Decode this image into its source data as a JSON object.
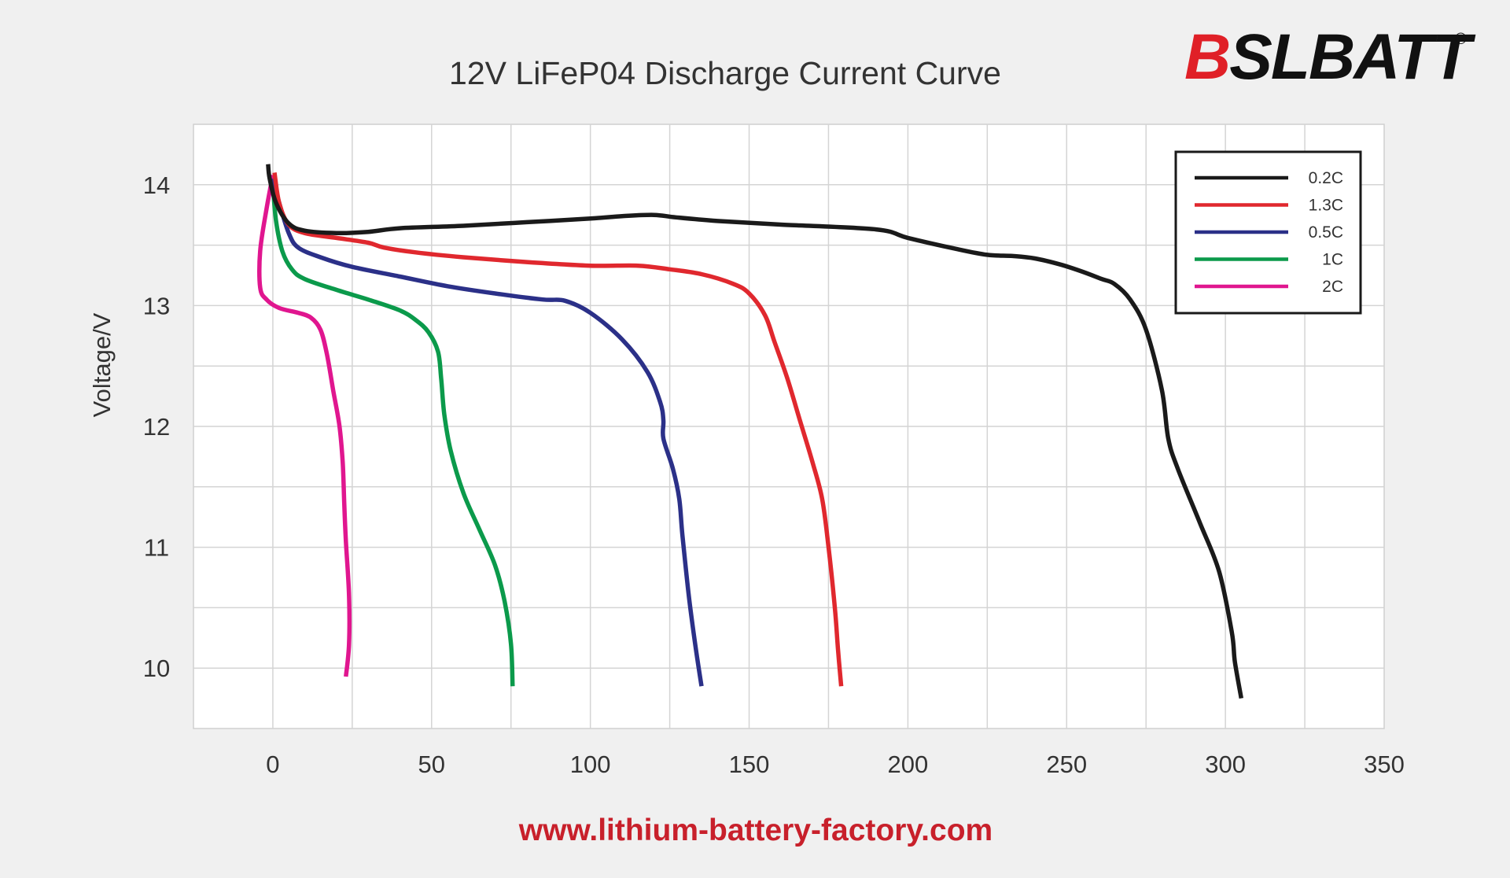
{
  "logo": {
    "text": "BSLBATT",
    "registered_mark": "®",
    "accent_color": "#e02027"
  },
  "footer": {
    "url": "www.lithium-battery-factory.com",
    "color": "#c8202b"
  },
  "chart_data": {
    "type": "line",
    "title": "12V LiFeP04 Discharge Current Curve",
    "xlabel": "",
    "ylabel": "Voltage/V",
    "xlim": [
      -25,
      350
    ],
    "ylim": [
      9.5,
      14.5
    ],
    "x_ticks": [
      0,
      50,
      100,
      150,
      200,
      250,
      300,
      350
    ],
    "y_ticks": [
      10,
      11,
      12,
      13,
      14
    ],
    "grid": true,
    "legend_position": "top-right",
    "series": [
      {
        "name": "0.2C",
        "color": "#1a1a1a",
        "points": [
          [
            -1.5,
            14.17
          ],
          [
            -1,
            14.05
          ],
          [
            1,
            13.85
          ],
          [
            5,
            13.68
          ],
          [
            10,
            13.62
          ],
          [
            20,
            13.6
          ],
          [
            30,
            13.61
          ],
          [
            40,
            13.64
          ],
          [
            60,
            13.66
          ],
          [
            80,
            13.69
          ],
          [
            100,
            13.72
          ],
          [
            110,
            13.74
          ],
          [
            120,
            13.75
          ],
          [
            127,
            13.73
          ],
          [
            140,
            13.7
          ],
          [
            160,
            13.67
          ],
          [
            190,
            13.63
          ],
          [
            200,
            13.56
          ],
          [
            215,
            13.47
          ],
          [
            225,
            13.42
          ],
          [
            233,
            13.41
          ],
          [
            240,
            13.39
          ],
          [
            248,
            13.34
          ],
          [
            255,
            13.28
          ],
          [
            261,
            13.22
          ],
          [
            265,
            13.18
          ],
          [
            270,
            13.05
          ],
          [
            275,
            12.8
          ],
          [
            280,
            12.3
          ],
          [
            282,
            11.9
          ],
          [
            285,
            11.65
          ],
          [
            292,
            11.2
          ],
          [
            298,
            10.8
          ],
          [
            302,
            10.3
          ],
          [
            303,
            10.05
          ],
          [
            305,
            9.75
          ]
        ]
      },
      {
        "name": "1.3C",
        "color": "#e0282e",
        "points": [
          [
            0.5,
            14.1
          ],
          [
            2,
            13.85
          ],
          [
            5,
            13.67
          ],
          [
            10,
            13.6
          ],
          [
            20,
            13.56
          ],
          [
            30,
            13.52
          ],
          [
            35,
            13.48
          ],
          [
            45,
            13.44
          ],
          [
            60,
            13.4
          ],
          [
            80,
            13.36
          ],
          [
            100,
            13.33
          ],
          [
            115,
            13.33
          ],
          [
            125,
            13.3
          ],
          [
            135,
            13.26
          ],
          [
            145,
            13.18
          ],
          [
            150,
            13.1
          ],
          [
            155,
            12.92
          ],
          [
            158,
            12.7
          ],
          [
            162,
            12.4
          ],
          [
            166,
            12.05
          ],
          [
            170,
            11.7
          ],
          [
            173,
            11.4
          ],
          [
            175,
            11.0
          ],
          [
            177,
            10.5
          ],
          [
            178,
            10.15
          ],
          [
            179,
            9.85
          ]
        ]
      },
      {
        "name": "0.5C",
        "color": "#2b3088",
        "points": [
          [
            0,
            14.05
          ],
          [
            2,
            13.85
          ],
          [
            5,
            13.6
          ],
          [
            8,
            13.48
          ],
          [
            15,
            13.4
          ],
          [
            25,
            13.32
          ],
          [
            40,
            13.24
          ],
          [
            55,
            13.16
          ],
          [
            70,
            13.1
          ],
          [
            85,
            13.05
          ],
          [
            92,
            13.04
          ],
          [
            100,
            12.94
          ],
          [
            110,
            12.72
          ],
          [
            118,
            12.45
          ],
          [
            122,
            12.2
          ],
          [
            123,
            12.05
          ],
          [
            123,
            11.9
          ],
          [
            126,
            11.65
          ],
          [
            128,
            11.4
          ],
          [
            129,
            11.1
          ],
          [
            131,
            10.6
          ],
          [
            133,
            10.2
          ],
          [
            135,
            9.85
          ]
        ]
      },
      {
        "name": "1C",
        "color": "#0b9a4b",
        "points": [
          [
            0,
            14.0
          ],
          [
            1,
            13.7
          ],
          [
            3,
            13.45
          ],
          [
            6,
            13.3
          ],
          [
            10,
            13.22
          ],
          [
            20,
            13.13
          ],
          [
            30,
            13.05
          ],
          [
            40,
            12.96
          ],
          [
            45,
            12.88
          ],
          [
            49,
            12.78
          ],
          [
            52,
            12.62
          ],
          [
            53,
            12.4
          ],
          [
            54,
            12.1
          ],
          [
            56,
            11.8
          ],
          [
            60,
            11.45
          ],
          [
            65,
            11.15
          ],
          [
            70,
            10.85
          ],
          [
            73,
            10.55
          ],
          [
            75,
            10.2
          ],
          [
            75.5,
            9.85
          ]
        ]
      },
      {
        "name": "2C",
        "color": "#e0168f",
        "points": [
          [
            0,
            14.08
          ],
          [
            -2,
            13.8
          ],
          [
            -4,
            13.45
          ],
          [
            -4,
            13.15
          ],
          [
            -2,
            13.05
          ],
          [
            2,
            12.98
          ],
          [
            8,
            12.94
          ],
          [
            12,
            12.9
          ],
          [
            15,
            12.8
          ],
          [
            17,
            12.6
          ],
          [
            19,
            12.3
          ],
          [
            21,
            12.0
          ],
          [
            22,
            11.7
          ],
          [
            22.5,
            11.35
          ],
          [
            23,
            11.05
          ],
          [
            24,
            10.6
          ],
          [
            24,
            10.2
          ],
          [
            23,
            9.93
          ]
        ]
      }
    ]
  }
}
